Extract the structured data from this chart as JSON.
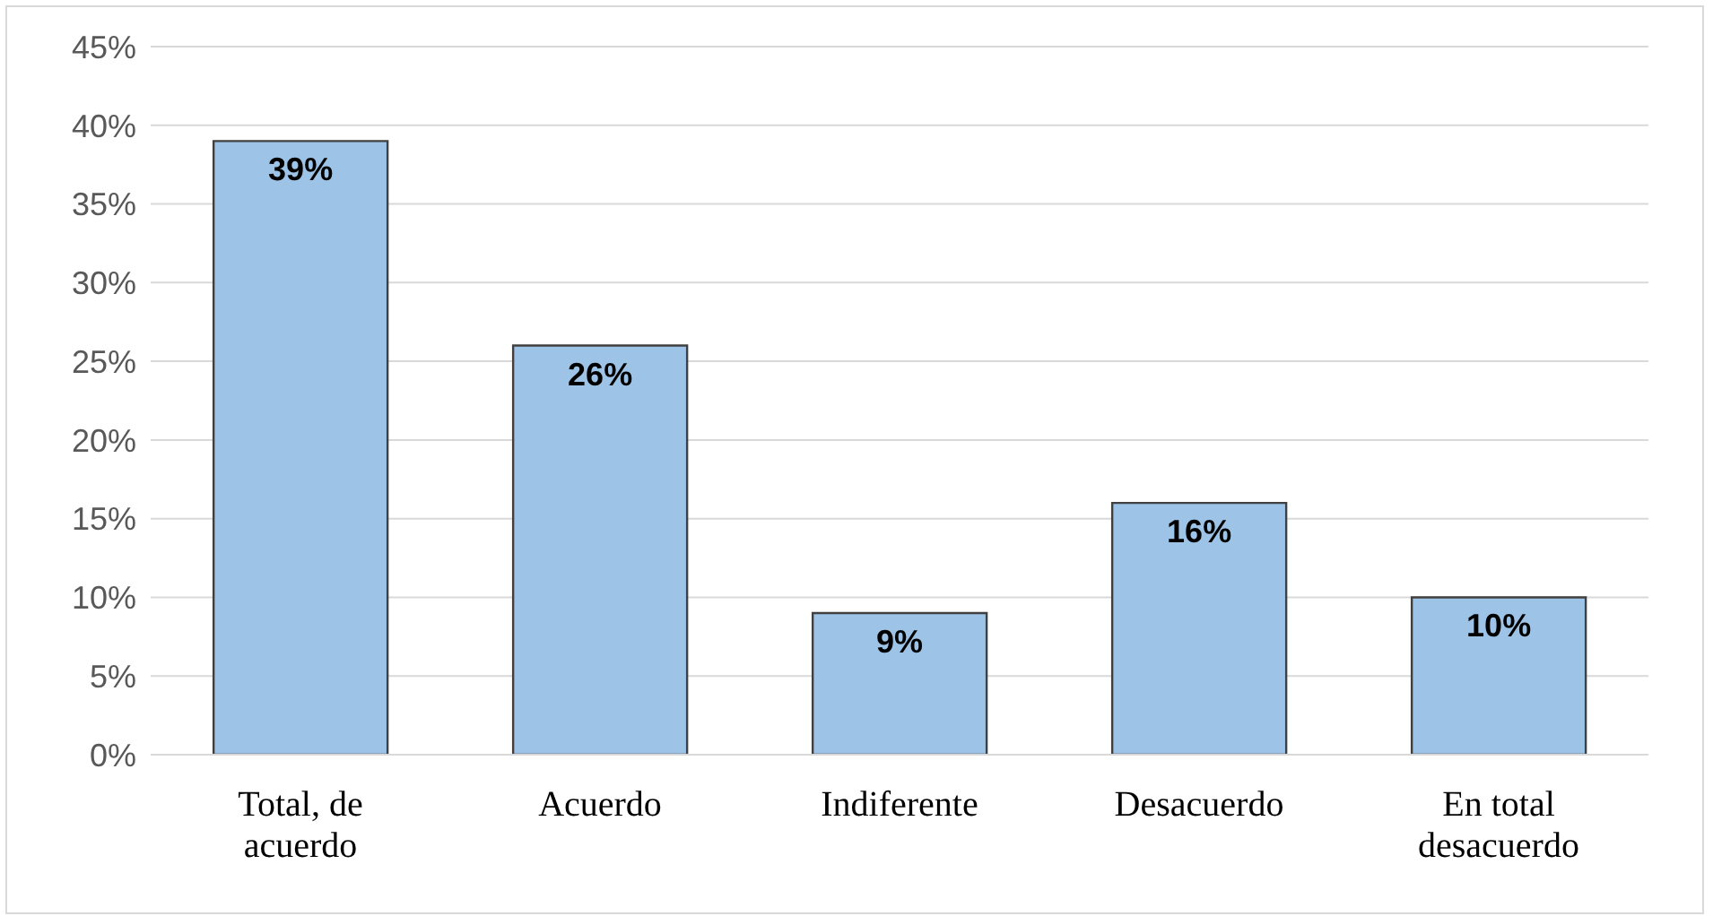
{
  "chart_data": {
    "type": "bar",
    "categories": [
      "Total, de acuerdo",
      "Acuerdo",
      "Indiferente",
      "Desacuerdo",
      "En total desacuerdo"
    ],
    "values": [
      39,
      26,
      9,
      16,
      10
    ],
    "value_labels": [
      "39%",
      "26%",
      "9%",
      "16%",
      "10%"
    ],
    "color": "#9dc3e6",
    "ylim": [
      0,
      45
    ],
    "yticks": [
      {
        "value": 0,
        "label": "0%"
      },
      {
        "value": 5,
        "label": "5%"
      },
      {
        "value": 10,
        "label": "10%"
      },
      {
        "value": 15,
        "label": "15%"
      },
      {
        "value": 20,
        "label": "20%"
      },
      {
        "value": 25,
        "label": "25%"
      },
      {
        "value": 30,
        "label": "30%"
      },
      {
        "value": 35,
        "label": "35%"
      },
      {
        "value": 40,
        "label": "40%"
      },
      {
        "value": 45,
        "label": "45%"
      }
    ],
    "grid": "y"
  }
}
